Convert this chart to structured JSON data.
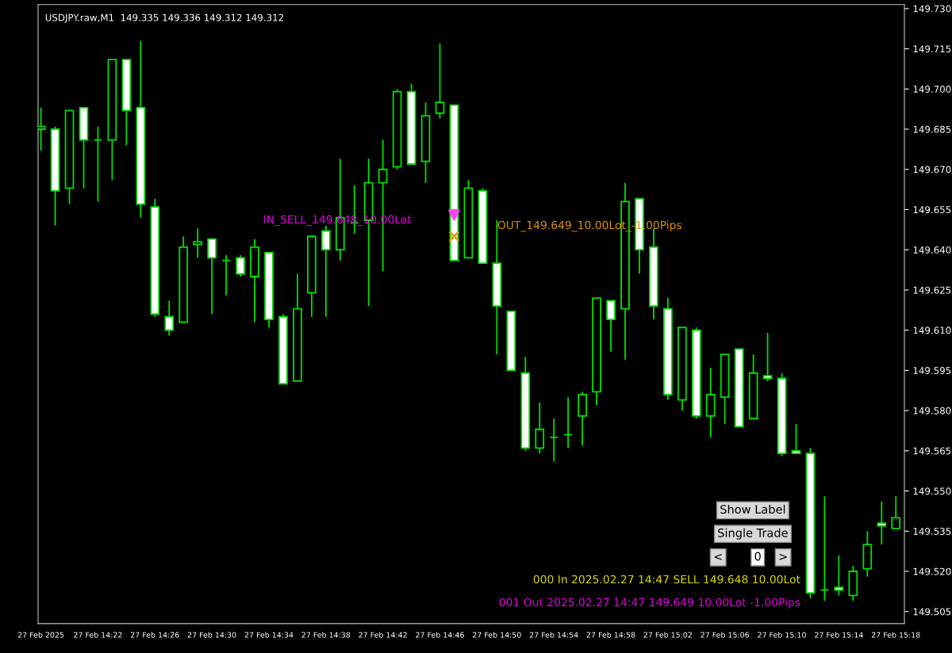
{
  "chart_data": {
    "type": "candlestick",
    "title": "USDJPY.raw,M1  149.335 149.336 149.312 149.312",
    "x": [
      "2025-02-27T14:18",
      "2025-02-27T14:19",
      "2025-02-27T14:20",
      "2025-02-27T14:21",
      "2025-02-27T14:22",
      "2025-02-27T14:23",
      "2025-02-27T14:24",
      "2025-02-27T14:25",
      "2025-02-27T14:26",
      "2025-02-27T14:27",
      "2025-02-27T14:28",
      "2025-02-27T14:29",
      "2025-02-27T14:30",
      "2025-02-27T14:31",
      "2025-02-27T14:32",
      "2025-02-27T14:33",
      "2025-02-27T14:34",
      "2025-02-27T14:35",
      "2025-02-27T14:36",
      "2025-02-27T14:37",
      "2025-02-27T14:38",
      "2025-02-27T14:39",
      "2025-02-27T14:40",
      "2025-02-27T14:41",
      "2025-02-27T14:42",
      "2025-02-27T14:43",
      "2025-02-27T14:44",
      "2025-02-27T14:45",
      "2025-02-27T14:46",
      "2025-02-27T14:47",
      "2025-02-27T14:48",
      "2025-02-27T14:49",
      "2025-02-27T14:50",
      "2025-02-27T14:51",
      "2025-02-27T14:52",
      "2025-02-27T14:53",
      "2025-02-27T14:54",
      "2025-02-27T14:55",
      "2025-02-27T14:56",
      "2025-02-27T14:57",
      "2025-02-27T14:58",
      "2025-02-27T14:59",
      "2025-02-27T15:00",
      "2025-02-27T15:01",
      "2025-02-27T15:02",
      "2025-02-27T15:03",
      "2025-02-27T15:04",
      "2025-02-27T15:05",
      "2025-02-27T15:06",
      "2025-02-27T15:07",
      "2025-02-27T15:08",
      "2025-02-27T15:09",
      "2025-02-27T15:10",
      "2025-02-27T15:11",
      "2025-02-27T15:12",
      "2025-02-27T15:13",
      "2025-02-27T15:14",
      "2025-02-27T15:15",
      "2025-02-27T15:16",
      "2025-02-27T15:17",
      "2025-02-27T15:18"
    ],
    "ohlc": [
      [
        149.685,
        149.693,
        149.677,
        149.686
      ],
      [
        149.685,
        149.686,
        149.649,
        149.662
      ],
      [
        149.663,
        149.692,
        149.657,
        149.692
      ],
      [
        149.693,
        149.693,
        149.663,
        149.681
      ],
      [
        149.681,
        149.686,
        149.658,
        149.681
      ],
      [
        149.681,
        149.711,
        149.666,
        149.711
      ],
      [
        149.711,
        149.711,
        149.679,
        149.692
      ],
      [
        149.693,
        149.718,
        149.652,
        149.657
      ],
      [
        149.656,
        149.659,
        149.615,
        149.616
      ],
      [
        149.615,
        149.621,
        149.608,
        149.61
      ],
      [
        149.613,
        149.645,
        149.613,
        149.641
      ],
      [
        149.642,
        149.648,
        149.637,
        149.643
      ],
      [
        149.644,
        149.644,
        149.616,
        149.637
      ],
      [
        149.636,
        149.638,
        149.623,
        149.636
      ],
      [
        149.637,
        149.638,
        149.63,
        149.631
      ],
      [
        149.63,
        149.644,
        149.613,
        149.641
      ],
      [
        149.639,
        149.639,
        149.611,
        149.614
      ],
      [
        149.615,
        149.616,
        149.59,
        149.59
      ],
      [
        149.591,
        149.631,
        149.591,
        149.618
      ],
      [
        149.624,
        149.645,
        149.615,
        149.645
      ],
      [
        149.647,
        149.649,
        149.615,
        149.64
      ],
      [
        149.64,
        149.674,
        149.636,
        149.652
      ],
      [
        149.65,
        149.664,
        149.646,
        149.65
      ],
      [
        149.651,
        149.674,
        149.619,
        149.665
      ],
      [
        149.665,
        149.681,
        149.632,
        149.67
      ],
      [
        149.671,
        149.7,
        149.67,
        149.699
      ],
      [
        149.699,
        149.702,
        149.672,
        149.672
      ],
      [
        149.673,
        149.695,
        149.665,
        149.69
      ],
      [
        149.691,
        149.717,
        149.689,
        149.695
      ],
      [
        149.694,
        149.694,
        149.636,
        149.636
      ],
      [
        149.637,
        149.666,
        149.637,
        149.663
      ],
      [
        149.662,
        149.663,
        149.635,
        149.635
      ],
      [
        149.635,
        149.651,
        149.601,
        149.619
      ],
      [
        149.617,
        149.617,
        149.595,
        149.595
      ],
      [
        149.594,
        149.6,
        149.565,
        149.566
      ],
      [
        149.566,
        149.583,
        149.564,
        149.573
      ],
      [
        149.57,
        149.577,
        149.561,
        149.57
      ],
      [
        149.571,
        149.585,
        149.566,
        149.571
      ],
      [
        149.578,
        149.587,
        149.567,
        149.586
      ],
      [
        149.587,
        149.622,
        149.582,
        149.622
      ],
      [
        149.621,
        149.621,
        149.602,
        149.614
      ],
      [
        149.618,
        149.665,
        149.599,
        149.658
      ],
      [
        149.659,
        149.659,
        149.631,
        149.64
      ],
      [
        149.641,
        149.648,
        149.614,
        149.619
      ],
      [
        149.618,
        149.622,
        149.584,
        149.586
      ],
      [
        149.584,
        149.611,
        149.58,
        149.611
      ],
      [
        149.61,
        149.611,
        149.577,
        149.578
      ],
      [
        149.578,
        149.596,
        149.57,
        149.586
      ],
      [
        149.585,
        149.601,
        149.575,
        149.601
      ],
      [
        149.603,
        149.603,
        149.574,
        149.574
      ],
      [
        149.577,
        149.601,
        149.577,
        149.594
      ],
      [
        149.593,
        149.609,
        149.591,
        149.592
      ],
      [
        149.592,
        149.594,
        149.563,
        149.564
      ],
      [
        149.565,
        149.575,
        149.564,
        149.564
      ],
      [
        149.564,
        149.566,
        149.51,
        149.512
      ],
      [
        149.513,
        149.548,
        149.509,
        149.513
      ],
      [
        149.514,
        149.526,
        149.511,
        149.513
      ],
      [
        149.511,
        149.522,
        149.509,
        149.52
      ],
      [
        149.521,
        149.535,
        149.518,
        149.53
      ],
      [
        149.538,
        149.546,
        149.53,
        149.537
      ],
      [
        149.536,
        149.548,
        149.536,
        149.54
      ]
    ],
    "series": [
      {
        "type": "scatter",
        "x": [
          "2025-02-27T14:47"
        ],
        "values": [
          149.653
        ],
        "color": "#ff40ff",
        "marker": "triangle"
      },
      {
        "type": "scatter",
        "x": [
          "2025-02-27T14:47"
        ],
        "values": [
          149.645
        ],
        "color": "#e0a000",
        "marker": "cross"
      }
    ],
    "xlim": [
      "2025-02-27T14:17:48",
      "2025-02-27T15:18:36"
    ],
    "ylim": [
      149.5005,
      149.7315
    ],
    "xticks": [
      {
        "value": "2025-02-27T14:18",
        "label": "27 Feb 2025"
      },
      {
        "value": "2025-02-27T14:22",
        "label": "27 Feb 14:22"
      },
      {
        "value": "2025-02-27T14:26",
        "label": "27 Feb 14:26"
      },
      {
        "value": "2025-02-27T14:30",
        "label": "27 Feb 14:30"
      },
      {
        "value": "2025-02-27T14:34",
        "label": "27 Feb 14:34"
      },
      {
        "value": "2025-02-27T14:38",
        "label": "27 Feb 14:38"
      },
      {
        "value": "2025-02-27T14:42",
        "label": "27 Feb 14:42"
      },
      {
        "value": "2025-02-27T14:46",
        "label": "27 Feb 14:46"
      },
      {
        "value": "2025-02-27T14:50",
        "label": "27 Feb 14:50"
      },
      {
        "value": "2025-02-27T14:54",
        "label": "27 Feb 14:54"
      },
      {
        "value": "2025-02-27T14:58",
        "label": "27 Feb 14:58"
      },
      {
        "value": "2025-02-27T15:02",
        "label": "27 Feb 15:02"
      },
      {
        "value": "2025-02-27T15:06",
        "label": "27 Feb 15:06"
      },
      {
        "value": "2025-02-27T15:10",
        "label": "27 Feb 15:10"
      },
      {
        "value": "2025-02-27T15:14",
        "label": "27 Feb 15:14"
      },
      {
        "value": "2025-02-27T15:18",
        "label": "27 Feb 15:18"
      }
    ],
    "yticks": [
      {
        "value": 149.505,
        "label": "149.505"
      },
      {
        "value": 149.52,
        "label": "149.520"
      },
      {
        "value": 149.535,
        "label": "149.535"
      },
      {
        "value": 149.55,
        "label": "149.550"
      },
      {
        "value": 149.565,
        "label": "149.565"
      },
      {
        "value": 149.58,
        "label": "149.580"
      },
      {
        "value": 149.595,
        "label": "149.595"
      },
      {
        "value": 149.61,
        "label": "149.610"
      },
      {
        "value": 149.625,
        "label": "149.625"
      },
      {
        "value": 149.64,
        "label": "149.640"
      },
      {
        "value": 149.655,
        "label": "149.655"
      },
      {
        "value": 149.67,
        "label": "149.670"
      },
      {
        "value": 149.685,
        "label": "149.685"
      },
      {
        "value": 149.7,
        "label": "149.700"
      },
      {
        "value": 149.715,
        "label": "149.715"
      },
      {
        "value": 149.73,
        "label": "149.730"
      }
    ],
    "annotations": [
      "IN_SELL_149.648_10.00Lot",
      "OUT_149.649_10.00Lot_-1.00Pips",
      "Show Label",
      "Single Trade",
      "<",
      "0",
      ">",
      "000 In 2025.02.27 14:47 SELL 149.648 10.00Lot",
      "001 Out 2025.02.27 14:47 149.649 10.00Lot -1.00Pips"
    ]
  }
}
